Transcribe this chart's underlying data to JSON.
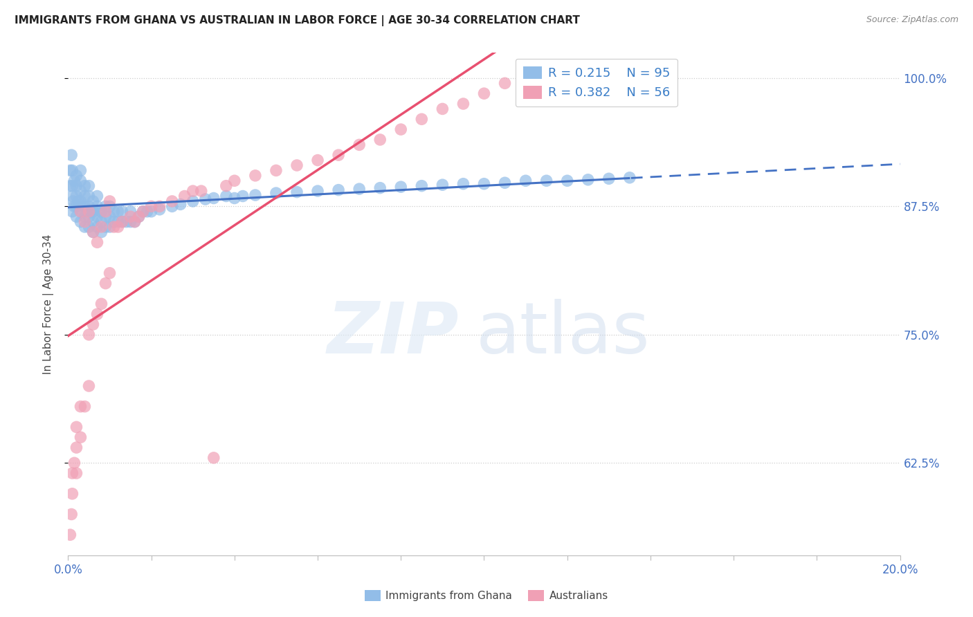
{
  "title": "IMMIGRANTS FROM GHANA VS AUSTRALIAN IN LABOR FORCE | AGE 30-34 CORRELATION CHART",
  "source": "Source: ZipAtlas.com",
  "ylabel": "In Labor Force | Age 30-34",
  "xlim": [
    0.0,
    0.2
  ],
  "ylim": [
    0.535,
    1.025
  ],
  "ytick_positions": [
    0.625,
    0.75,
    0.875,
    1.0
  ],
  "ytick_labels": [
    "62.5%",
    "75.0%",
    "87.5%",
    "100.0%"
  ],
  "blue_scatter_color": "#92BDE8",
  "pink_scatter_color": "#F0A0B5",
  "blue_line_color": "#4472C4",
  "pink_line_color": "#E85070",
  "legend_r_blue": "0.215",
  "legend_n_blue": "95",
  "legend_r_pink": "0.382",
  "legend_n_pink": "56",
  "blue_scatter_x": [
    0.0005,
    0.0005,
    0.0008,
    0.001,
    0.001,
    0.001,
    0.001,
    0.0012,
    0.0015,
    0.0015,
    0.002,
    0.002,
    0.002,
    0.002,
    0.002,
    0.0025,
    0.003,
    0.003,
    0.003,
    0.003,
    0.003,
    0.003,
    0.0035,
    0.004,
    0.004,
    0.004,
    0.004,
    0.004,
    0.0045,
    0.005,
    0.005,
    0.005,
    0.005,
    0.005,
    0.0055,
    0.006,
    0.006,
    0.006,
    0.006,
    0.007,
    0.007,
    0.007,
    0.007,
    0.0075,
    0.008,
    0.008,
    0.008,
    0.009,
    0.009,
    0.009,
    0.01,
    0.01,
    0.01,
    0.011,
    0.011,
    0.012,
    0.012,
    0.013,
    0.013,
    0.014,
    0.015,
    0.015,
    0.016,
    0.017,
    0.018,
    0.019,
    0.02,
    0.022,
    0.025,
    0.027,
    0.03,
    0.033,
    0.035,
    0.038,
    0.04,
    0.042,
    0.045,
    0.05,
    0.055,
    0.06,
    0.065,
    0.07,
    0.075,
    0.08,
    0.085,
    0.09,
    0.095,
    0.1,
    0.105,
    0.11,
    0.115,
    0.12,
    0.125,
    0.13,
    0.135
  ],
  "blue_scatter_y": [
    0.895,
    0.91,
    0.925,
    0.87,
    0.885,
    0.895,
    0.91,
    0.88,
    0.875,
    0.9,
    0.865,
    0.875,
    0.885,
    0.895,
    0.905,
    0.88,
    0.86,
    0.87,
    0.88,
    0.89,
    0.9,
    0.91,
    0.875,
    0.855,
    0.865,
    0.875,
    0.885,
    0.895,
    0.87,
    0.855,
    0.865,
    0.875,
    0.885,
    0.895,
    0.87,
    0.85,
    0.86,
    0.87,
    0.88,
    0.855,
    0.865,
    0.875,
    0.885,
    0.87,
    0.85,
    0.86,
    0.87,
    0.855,
    0.865,
    0.875,
    0.855,
    0.865,
    0.875,
    0.86,
    0.87,
    0.86,
    0.87,
    0.86,
    0.87,
    0.86,
    0.86,
    0.87,
    0.86,
    0.865,
    0.87,
    0.87,
    0.87,
    0.872,
    0.875,
    0.877,
    0.88,
    0.882,
    0.883,
    0.885,
    0.883,
    0.885,
    0.886,
    0.888,
    0.889,
    0.89,
    0.891,
    0.892,
    0.893,
    0.894,
    0.895,
    0.896,
    0.897,
    0.897,
    0.898,
    0.9,
    0.9,
    0.9,
    0.901,
    0.902,
    0.903
  ],
  "pink_scatter_x": [
    0.0005,
    0.0008,
    0.001,
    0.001,
    0.0015,
    0.002,
    0.002,
    0.002,
    0.003,
    0.003,
    0.003,
    0.004,
    0.004,
    0.005,
    0.005,
    0.005,
    0.006,
    0.006,
    0.007,
    0.007,
    0.008,
    0.008,
    0.009,
    0.009,
    0.01,
    0.01,
    0.011,
    0.012,
    0.013,
    0.015,
    0.016,
    0.017,
    0.018,
    0.02,
    0.022,
    0.025,
    0.028,
    0.03,
    0.032,
    0.035,
    0.038,
    0.04,
    0.045,
    0.05,
    0.055,
    0.06,
    0.065,
    0.07,
    0.075,
    0.08,
    0.085,
    0.09,
    0.095,
    0.1,
    0.105,
    0.11
  ],
  "pink_scatter_y": [
    0.555,
    0.575,
    0.595,
    0.615,
    0.625,
    0.615,
    0.64,
    0.66,
    0.65,
    0.68,
    0.87,
    0.68,
    0.86,
    0.7,
    0.75,
    0.87,
    0.76,
    0.85,
    0.77,
    0.84,
    0.78,
    0.855,
    0.8,
    0.87,
    0.81,
    0.88,
    0.855,
    0.855,
    0.86,
    0.865,
    0.86,
    0.865,
    0.87,
    0.875,
    0.875,
    0.88,
    0.885,
    0.89,
    0.89,
    0.63,
    0.895,
    0.9,
    0.905,
    0.91,
    0.915,
    0.92,
    0.925,
    0.935,
    0.94,
    0.95,
    0.96,
    0.97,
    0.975,
    0.985,
    0.995,
    1.0
  ]
}
